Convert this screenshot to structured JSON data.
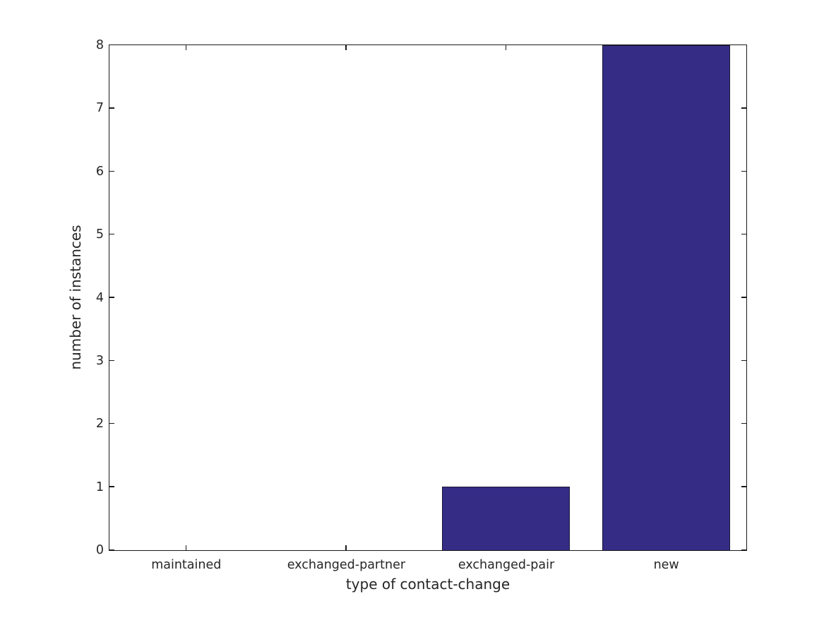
{
  "figure": {
    "background": "#ffffff"
  },
  "chart_data": {
    "type": "bar",
    "title": "",
    "categories": [
      "maintained",
      "exchanged-partner",
      "exchanged-pair",
      "new"
    ],
    "values": [
      0,
      0,
      1,
      8
    ],
    "xlabel": "type of contact-change",
    "ylabel": "number of instances",
    "ylim": [
      0,
      8
    ],
    "yticks": [
      0,
      1,
      2,
      3,
      4,
      5,
      6,
      7,
      8
    ],
    "xlim": [
      -0.48,
      3.5
    ],
    "bar_width": 0.8,
    "bar_color": "#352c85",
    "bar_edge_color": "#1c1836",
    "axis_color": "#1a1a1a",
    "text_color": "#262626",
    "grid": false,
    "legend": null,
    "tick_sides": [
      "left",
      "right",
      "top",
      "bottom"
    ]
  }
}
